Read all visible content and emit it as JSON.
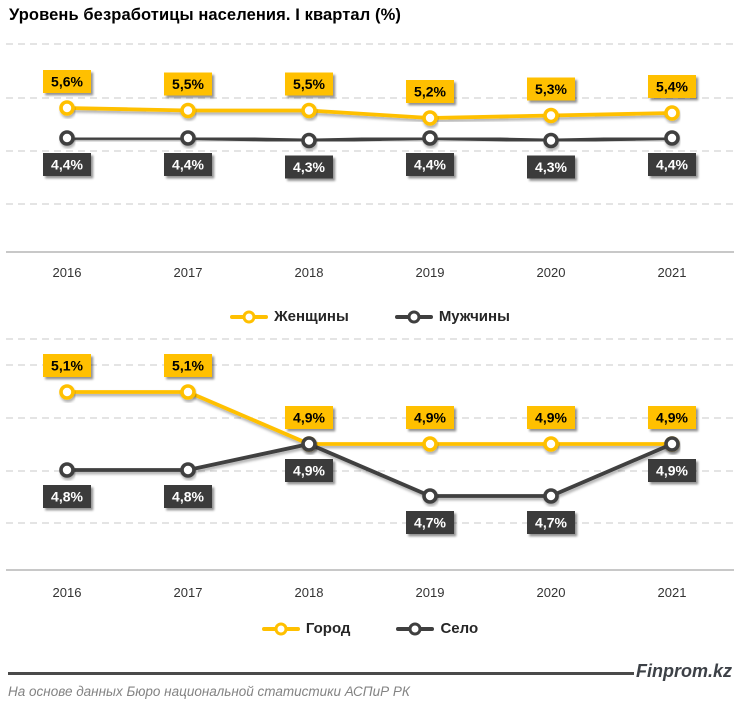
{
  "page_title": "Уровень безработицы населения. I квартал (%)",
  "footer": {
    "brand": "Finprom.kz",
    "source_note": "На основе данных Бюро национальной статистики АСПиР РК"
  },
  "colors": {
    "accent_yellow": "#FFC000",
    "accent_dark": "#3F3F3F",
    "dark_label_bg": "#3B3B3B",
    "gridline": "#D3D3D3",
    "axis_line": "#A8A8A8",
    "tick_text": "#333333",
    "legend_text": "#262626",
    "footer_text": "#838383",
    "brand_text": "#3D4147"
  },
  "chart_data": [
    {
      "type": "line",
      "categories": [
        "2016",
        "2017",
        "2018",
        "2019",
        "2020",
        "2021"
      ],
      "series": [
        {
          "key": "women",
          "name": "Женщины",
          "color": "#FFC000",
          "label_bg": "#FFC000",
          "label_text_color": "#000000",
          "label_side": "above",
          "values": [
            5.6,
            5.5,
            5.5,
            5.2,
            5.3,
            5.4
          ],
          "labels": [
            "5,6%",
            "5,5%",
            "5,5%",
            "5,2%",
            "5,3%",
            "5,4%"
          ]
        },
        {
          "key": "men",
          "name": "Мужчины",
          "color": "#3F3F3F",
          "label_bg": "#3B3B3B",
          "label_text_color": "#FFFFFF",
          "label_side": "below",
          "values": [
            4.4,
            4.4,
            4.3,
            4.4,
            4.3,
            4.4
          ],
          "labels": [
            "4,4%",
            "4,4%",
            "4,3%",
            "4,4%",
            "4,3%",
            "4,4%"
          ]
        }
      ],
      "grid": "horizontal-dashed",
      "legend_position": "bottom",
      "value_axis_visible": false,
      "value_format": "percent-comma-1dp"
    },
    {
      "type": "line",
      "categories": [
        "2016",
        "2017",
        "2018",
        "2019",
        "2020",
        "2021"
      ],
      "series": [
        {
          "key": "city",
          "name": "Город",
          "color": "#FFC000",
          "label_bg": "#FFC000",
          "label_text_color": "#000000",
          "label_side": "above",
          "values": [
            5.1,
            5.1,
            4.9,
            4.9,
            4.9,
            4.9
          ],
          "labels": [
            "5,1%",
            "5,1%",
            "4,9%",
            "4,9%",
            "4,9%",
            "4,9%"
          ]
        },
        {
          "key": "village",
          "name": "Село",
          "color": "#3F3F3F",
          "label_bg": "#3B3B3B",
          "label_text_color": "#FFFFFF",
          "label_side": "below",
          "values": [
            4.8,
            4.8,
            4.9,
            4.7,
            4.7,
            4.9
          ],
          "labels": [
            "4,8%",
            "4,8%",
            "4,9%",
            "4,7%",
            "4,7%",
            "4,9%"
          ]
        }
      ],
      "grid": "horizontal-dashed",
      "legend_position": "bottom",
      "value_axis_visible": false,
      "value_format": "percent-comma-1dp"
    }
  ]
}
